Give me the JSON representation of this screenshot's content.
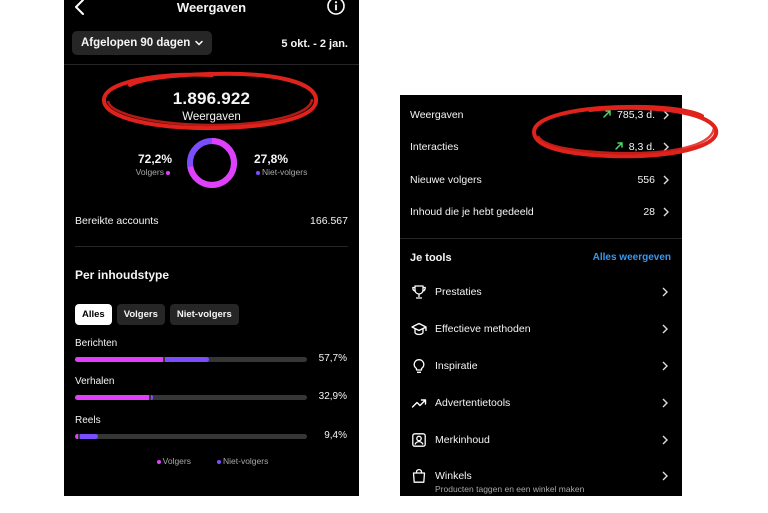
{
  "left": {
    "title": "Weergaven",
    "period_button": "Afgelopen 90 dagen",
    "date_range": "5 okt. - 2 jan.",
    "total_views": "1.896.922",
    "total_label": "Weergaven",
    "followers_pct": "72,2%",
    "followers_label": "Volgers",
    "nonfollowers_pct": "27,8%",
    "nonfollowers_label": "Niet-volgers",
    "donut_followers_fraction": 0.722,
    "reach_label": "Bereikte accounts",
    "reach_value": "166.567",
    "content_type_title": "Per inhoudstype",
    "filters": [
      "Alles",
      "Volgers",
      "Niet-volgers"
    ],
    "content_types": [
      {
        "label": "Berichten",
        "pct": "57,7%",
        "followers": 0.38,
        "nonfollowers": 0.19
      },
      {
        "label": "Verhalen",
        "pct": "32,9%",
        "followers": 0.32,
        "nonfollowers": 0.01
      },
      {
        "label": "Reels",
        "pct": "9,4%",
        "followers": 0.015,
        "nonfollowers": 0.079
      }
    ],
    "legend": {
      "followers": "Volgers",
      "nonfollowers": "Niet-volgers"
    }
  },
  "right": {
    "rows": [
      {
        "label": "Weergaven",
        "value": "785,3 d.",
        "trend": true
      },
      {
        "label": "Interacties",
        "value": "8,3 d.",
        "trend": true
      },
      {
        "label": "Nieuwe volgers",
        "value": "556",
        "trend": false
      },
      {
        "label": "Inhoud die je hebt gedeeld",
        "value": "28",
        "trend": false
      }
    ],
    "tools_title": "Je tools",
    "tools_all": "Alles weergeven",
    "tools": [
      {
        "label": "Prestaties",
        "icon": "trophy-icon"
      },
      {
        "label": "Effectieve methoden",
        "icon": "graduation-cap-icon"
      },
      {
        "label": "Inspiratie",
        "icon": "lightbulb-icon"
      },
      {
        "label": "Advertentietools",
        "icon": "trend-up-icon"
      },
      {
        "label": "Merkinhoud",
        "icon": "brand-content-icon"
      },
      {
        "label": "Winkels",
        "icon": "shopping-bag-icon",
        "sub": "Producten taggen en een winkel maken"
      }
    ]
  },
  "colors": {
    "followers": "#e040fb",
    "nonfollowers": "#7c4dff",
    "trend_up": "#4cd964",
    "link": "#3897f0",
    "annotation": "#e0221c"
  }
}
